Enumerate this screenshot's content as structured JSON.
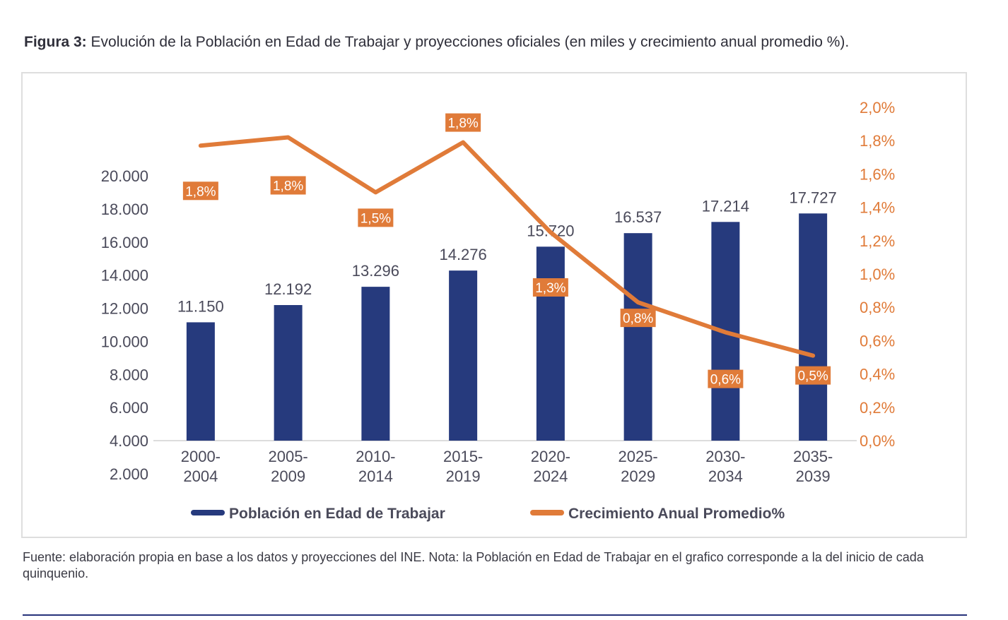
{
  "figure": {
    "label": "Figura 3:",
    "title": "Evolución de la Población en Edad de Trabajar y proyecciones oficiales (en miles y crecimiento anual promedio %)."
  },
  "source_note": "Fuente: elaboración propia en base a los datos y proyecciones del INE. Nota: la Población en Edad de Trabajar en el grafico corresponde a la del inicio de cada quinquenio.",
  "colors": {
    "bar": "#263a7d",
    "line": "#e07b39",
    "label_bg": "#e07b39",
    "axis_text_left": "#4a4a5a",
    "axis_text_right": "#e07b39"
  },
  "chart_data": {
    "type": "bar",
    "categories": [
      [
        "2000-",
        "2004"
      ],
      [
        "2005-",
        "2009"
      ],
      [
        "2010-",
        "2014"
      ],
      [
        "2015-",
        "2019"
      ],
      [
        "2020-",
        "2024"
      ],
      [
        "2025-",
        "2029"
      ],
      [
        "2030-",
        "2034"
      ],
      [
        "2035-",
        "2039"
      ]
    ],
    "series": [
      {
        "name": "Población en Edad de Trabajar",
        "type": "bar",
        "axis": "left",
        "values": [
          11150,
          12192,
          13296,
          14276,
          15720,
          16537,
          17214,
          17727
        ],
        "labels": [
          "11.150",
          "12.192",
          "13.296",
          "14.276",
          "15.720",
          "16.537",
          "17.214",
          "17.727"
        ]
      },
      {
        "name": "Crecimiento Anual Promedio%",
        "type": "line",
        "axis": "right",
        "values": [
          1.77,
          1.82,
          1.49,
          1.79,
          1.25,
          0.83,
          0.65,
          0.51
        ],
        "labels": [
          "1,8%",
          "1,8%",
          "1,5%",
          "1,8%",
          "1,3%",
          "0,8%",
          "0,6%",
          "0,5%"
        ]
      }
    ],
    "y_left": {
      "ticks": [
        "2.000",
        "4.000",
        "6.000",
        "8.000",
        "10.000",
        "12.000",
        "14.000",
        "16.000",
        "18.000",
        "20.000"
      ],
      "tick_values": [
        2000,
        4000,
        6000,
        8000,
        10000,
        12000,
        14000,
        16000,
        18000,
        20000
      ],
      "ylim": [
        4000,
        20000
      ]
    },
    "y_right": {
      "ticks": [
        "0,0%",
        "0,2%",
        "0,4%",
        "0,6%",
        "0,8%",
        "1,0%",
        "1,2%",
        "1,4%",
        "1,6%",
        "1,8%",
        "2,0%"
      ],
      "tick_values": [
        0,
        0.2,
        0.4,
        0.6,
        0.8,
        1.0,
        1.2,
        1.4,
        1.6,
        1.8,
        2.0
      ],
      "ylim": [
        0,
        2.0
      ]
    },
    "legend": [
      {
        "label": "Población en Edad de Trabajar",
        "kind": "bar"
      },
      {
        "label": "Crecimiento Anual Promedio%",
        "kind": "line"
      }
    ],
    "legend_position": "bottom",
    "grid": false
  }
}
